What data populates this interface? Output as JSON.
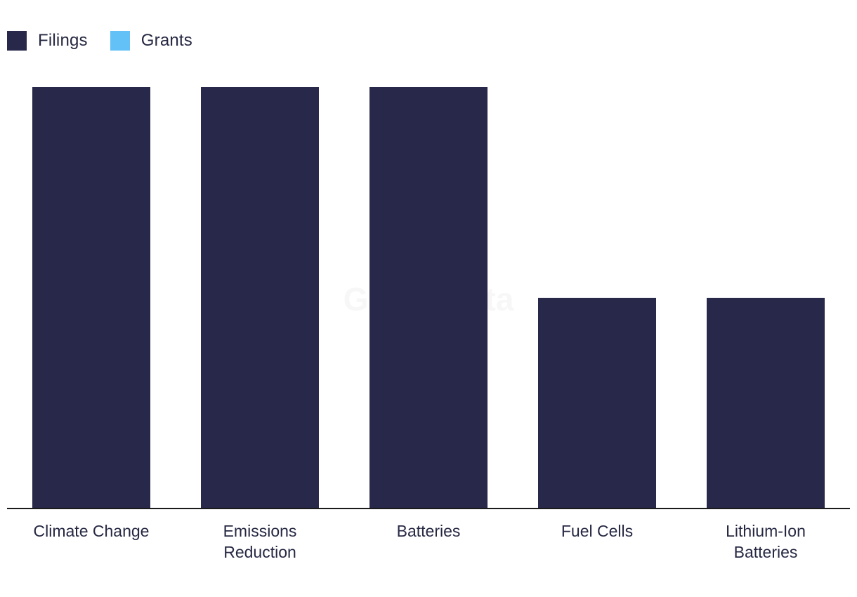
{
  "legend": [
    {
      "name": "Filings",
      "color": "#27284a"
    },
    {
      "name": "Grants",
      "color": "#63c1f8"
    }
  ],
  "watermark": "GlobalData",
  "chart_data": {
    "type": "bar",
    "categories": [
      [
        "Climate Change"
      ],
      [
        "Emissions",
        "Reduction"
      ],
      [
        "Batteries"
      ],
      [
        "Fuel Cells"
      ],
      [
        "Lithium-Ion",
        "Batteries"
      ]
    ],
    "series": [
      {
        "name": "Filings",
        "color": "#27284a",
        "values": [
          2,
          2,
          2,
          1,
          1
        ]
      },
      {
        "name": "Grants",
        "color": "#63c1f8",
        "values": [
          0,
          0,
          0,
          0,
          0
        ]
      }
    ],
    "ylim": [
      0,
      2
    ],
    "grid": false,
    "legend_position": "top-left",
    "xlabel": "",
    "ylabel": ""
  }
}
